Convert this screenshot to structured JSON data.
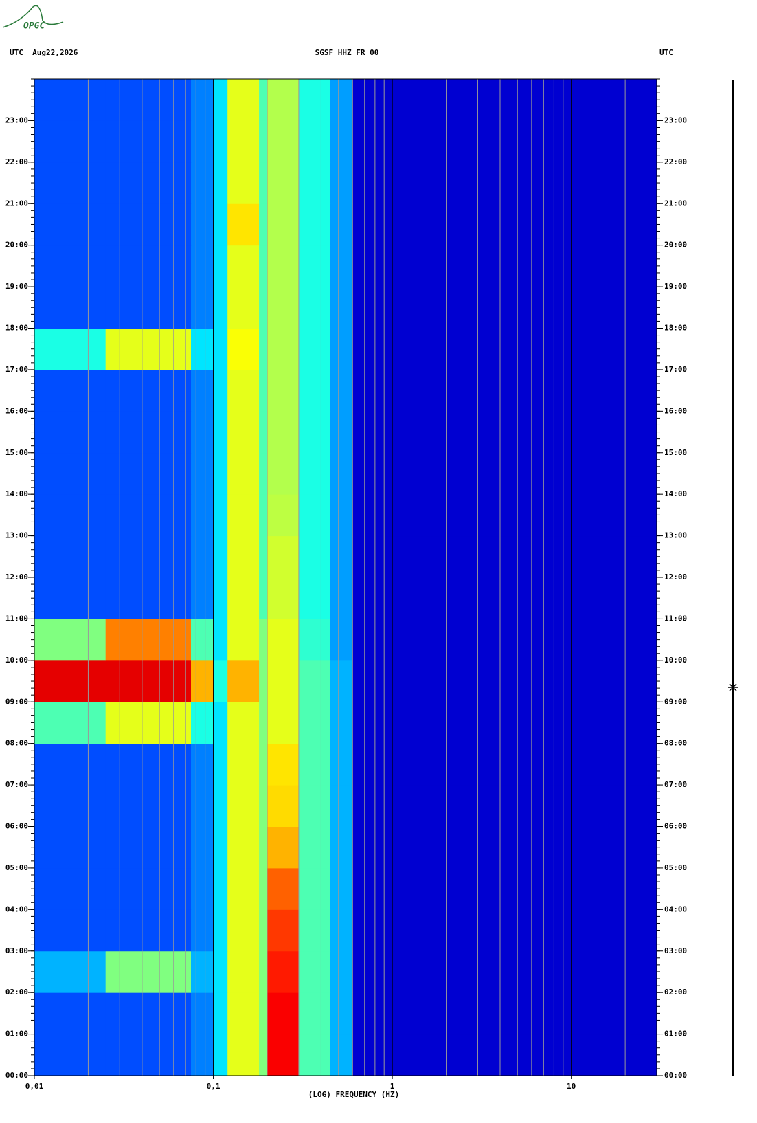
{
  "logo": "OPGC",
  "chart_data": {
    "type": "heatmap",
    "title": "SGSF HHZ FR 00",
    "left_header": "UTC  Aug22,2026",
    "right_header": "UTC",
    "x_label": "(LOG) FREQUENCY (HZ)",
    "log_x": true,
    "xlim": [
      0.01,
      30
    ],
    "xticks": [
      {
        "value": 0.01,
        "label": "0,01"
      },
      {
        "value": 0.1,
        "label": "0,1"
      },
      1,
      10
    ],
    "minor_xticks": [
      0.02,
      0.03,
      0.04,
      0.05,
      0.06,
      0.07,
      0.08,
      0.09,
      0.2,
      0.3,
      0.4,
      0.5,
      0.6,
      0.7,
      0.8,
      0.9,
      2,
      3,
      4,
      5,
      6,
      7,
      8,
      9,
      20
    ],
    "ylim": [
      0,
      24
    ],
    "yticks": [
      {
        "value": 0,
        "label": "00:00"
      },
      {
        "value": 1,
        "label": "01:00"
      },
      {
        "value": 2,
        "label": "02:00"
      },
      {
        "value": 3,
        "label": "03:00"
      },
      {
        "value": 4,
        "label": "04:00"
      },
      {
        "value": 5,
        "label": "05:00"
      },
      {
        "value": 6,
        "label": "06:00"
      },
      {
        "value": 7,
        "label": "07:00"
      },
      {
        "value": 8,
        "label": "08:00"
      },
      {
        "value": 9,
        "label": "09:00"
      },
      {
        "value": 10,
        "label": "10:00"
      },
      {
        "value": 11,
        "label": "11:00"
      },
      {
        "value": 12,
        "label": "12:00"
      },
      {
        "value": 13,
        "label": "13:00"
      },
      {
        "value": 14,
        "label": "14:00"
      },
      {
        "value": 15,
        "label": "15:00"
      },
      {
        "value": 16,
        "label": "16:00"
      },
      {
        "value": 17,
        "label": "17:00"
      },
      {
        "value": 18,
        "label": "18:00"
      },
      {
        "value": 19,
        "label": "19:00"
      },
      {
        "value": 20,
        "label": "20:00"
      },
      {
        "value": 21,
        "label": "21:00"
      },
      {
        "value": 22,
        "label": "22:00"
      },
      {
        "value": 23,
        "label": "23:00"
      }
    ],
    "x_bins": [
      0.01,
      0.025,
      0.05,
      0.075,
      0.1,
      0.12,
      0.18,
      0.2,
      0.3,
      0.45,
      0.6,
      30
    ],
    "zlim": [
      0,
      1
    ],
    "values": [
      [
        0.2,
        0.2,
        0.2,
        0.25,
        0.35,
        0.6,
        0.5,
        0.88,
        0.45,
        0.3,
        0.08
      ],
      [
        0.2,
        0.2,
        0.2,
        0.25,
        0.35,
        0.6,
        0.5,
        0.88,
        0.45,
        0.3,
        0.08
      ],
      [
        0.3,
        0.5,
        0.5,
        0.3,
        0.35,
        0.6,
        0.5,
        0.85,
        0.45,
        0.3,
        0.08
      ],
      [
        0.2,
        0.2,
        0.2,
        0.25,
        0.35,
        0.6,
        0.5,
        0.82,
        0.45,
        0.3,
        0.08
      ],
      [
        0.2,
        0.2,
        0.2,
        0.25,
        0.35,
        0.6,
        0.5,
        0.78,
        0.45,
        0.3,
        0.08
      ],
      [
        0.2,
        0.2,
        0.2,
        0.25,
        0.35,
        0.6,
        0.5,
        0.7,
        0.45,
        0.3,
        0.08
      ],
      [
        0.2,
        0.2,
        0.2,
        0.25,
        0.35,
        0.6,
        0.5,
        0.66,
        0.45,
        0.3,
        0.08
      ],
      [
        0.2,
        0.2,
        0.2,
        0.25,
        0.35,
        0.6,
        0.5,
        0.65,
        0.45,
        0.3,
        0.08
      ],
      [
        0.45,
        0.6,
        0.6,
        0.4,
        0.35,
        0.6,
        0.5,
        0.6,
        0.45,
        0.3,
        0.08
      ],
      [
        0.9,
        0.9,
        0.9,
        0.7,
        0.4,
        0.7,
        0.5,
        0.6,
        0.45,
        0.3,
        0.08
      ],
      [
        0.5,
        0.75,
        0.75,
        0.45,
        0.35,
        0.6,
        0.5,
        0.6,
        0.42,
        0.28,
        0.08
      ],
      [
        0.2,
        0.2,
        0.2,
        0.25,
        0.35,
        0.6,
        0.45,
        0.58,
        0.4,
        0.28,
        0.08
      ],
      [
        0.2,
        0.2,
        0.2,
        0.25,
        0.35,
        0.6,
        0.45,
        0.58,
        0.4,
        0.28,
        0.08
      ],
      [
        0.2,
        0.2,
        0.2,
        0.25,
        0.35,
        0.6,
        0.45,
        0.56,
        0.4,
        0.28,
        0.08
      ],
      [
        0.2,
        0.2,
        0.2,
        0.25,
        0.35,
        0.6,
        0.45,
        0.55,
        0.4,
        0.28,
        0.08
      ],
      [
        0.2,
        0.2,
        0.2,
        0.25,
        0.35,
        0.6,
        0.45,
        0.55,
        0.4,
        0.28,
        0.08
      ],
      [
        0.2,
        0.2,
        0.2,
        0.25,
        0.35,
        0.6,
        0.45,
        0.55,
        0.4,
        0.28,
        0.08
      ],
      [
        0.4,
        0.6,
        0.6,
        0.35,
        0.35,
        0.62,
        0.45,
        0.55,
        0.4,
        0.28,
        0.08
      ],
      [
        0.2,
        0.2,
        0.2,
        0.25,
        0.35,
        0.6,
        0.45,
        0.55,
        0.4,
        0.28,
        0.08
      ],
      [
        0.2,
        0.2,
        0.2,
        0.25,
        0.35,
        0.6,
        0.45,
        0.55,
        0.4,
        0.28,
        0.08
      ],
      [
        0.2,
        0.2,
        0.2,
        0.25,
        0.35,
        0.65,
        0.45,
        0.55,
        0.4,
        0.28,
        0.08
      ],
      [
        0.2,
        0.2,
        0.2,
        0.25,
        0.35,
        0.6,
        0.45,
        0.55,
        0.4,
        0.28,
        0.08
      ],
      [
        0.2,
        0.2,
        0.2,
        0.25,
        0.35,
        0.6,
        0.45,
        0.55,
        0.4,
        0.28,
        0.08
      ],
      [
        0.2,
        0.2,
        0.2,
        0.25,
        0.35,
        0.6,
        0.45,
        0.55,
        0.4,
        0.28,
        0.08
      ]
    ]
  }
}
